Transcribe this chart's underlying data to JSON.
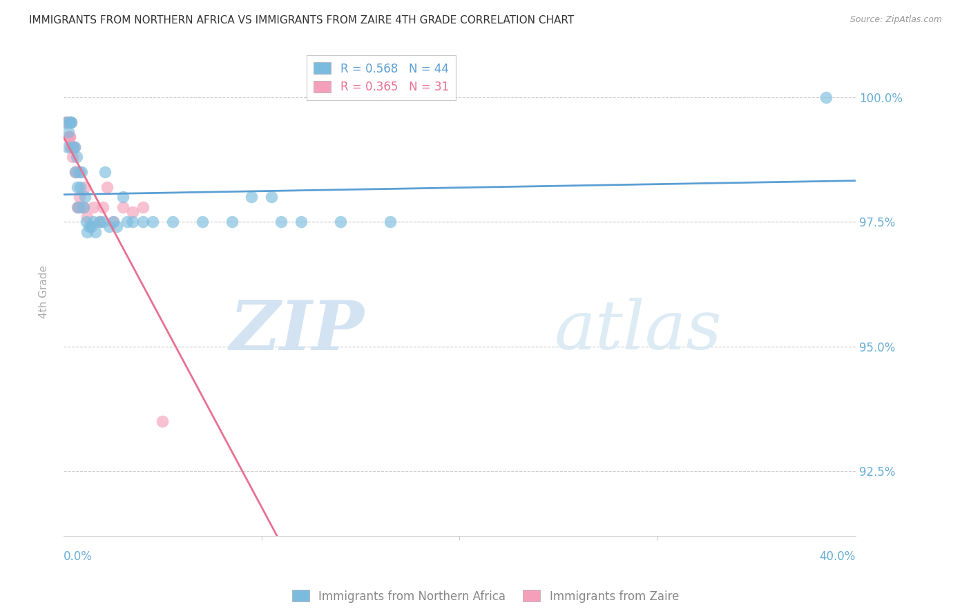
{
  "title": "IMMIGRANTS FROM NORTHERN AFRICA VS IMMIGRANTS FROM ZAIRE 4TH GRADE CORRELATION CHART",
  "source": "Source: ZipAtlas.com",
  "ylabel": "4th Grade",
  "xlim": [
    0.0,
    40.0
  ],
  "ylim": [
    91.2,
    101.0
  ],
  "yticks": [
    92.5,
    95.0,
    97.5,
    100.0
  ],
  "ytick_labels": [
    "92.5%",
    "95.0%",
    "97.5%",
    "100.0%"
  ],
  "blue_color": "#7bbcde",
  "pink_color": "#f4a0bb",
  "blue_line_color": "#5b9fd4",
  "pink_line_color": "#e87090",
  "legend_blue_R": "0.568",
  "legend_blue_N": "44",
  "legend_pink_R": "0.365",
  "legend_pink_N": "31",
  "blue_scatter_x": [
    0.15,
    0.2,
    0.25,
    0.3,
    0.35,
    0.4,
    0.5,
    0.55,
    0.6,
    0.65,
    0.7,
    0.75,
    0.8,
    0.85,
    0.9,
    1.0,
    1.1,
    1.15,
    1.2,
    1.3,
    1.4,
    1.5,
    1.6,
    1.8,
    2.0,
    2.1,
    2.3,
    2.5,
    2.7,
    3.0,
    3.2,
    3.5,
    4.0,
    4.5,
    5.5,
    7.0,
    8.5,
    9.5,
    10.5,
    11.0,
    12.0,
    14.0,
    16.5,
    38.5
  ],
  "blue_scatter_y": [
    99.5,
    99.0,
    99.3,
    99.5,
    99.5,
    99.5,
    99.0,
    99.0,
    98.5,
    98.8,
    98.2,
    97.8,
    98.5,
    98.2,
    98.5,
    97.8,
    98.0,
    97.5,
    97.3,
    97.4,
    97.4,
    97.5,
    97.3,
    97.5,
    97.5,
    98.5,
    97.4,
    97.5,
    97.4,
    98.0,
    97.5,
    97.5,
    97.5,
    97.5,
    97.5,
    97.5,
    97.5,
    98.0,
    98.0,
    97.5,
    97.5,
    97.5,
    97.5,
    100.0
  ],
  "pink_scatter_x": [
    0.1,
    0.15,
    0.2,
    0.25,
    0.28,
    0.3,
    0.33,
    0.35,
    0.38,
    0.4,
    0.45,
    0.5,
    0.55,
    0.6,
    0.65,
    0.7,
    0.75,
    0.8,
    0.9,
    1.0,
    1.1,
    1.2,
    1.5,
    1.8,
    2.0,
    2.2,
    2.5,
    3.0,
    3.5,
    4.0,
    5.0
  ],
  "pink_scatter_y": [
    99.5,
    99.5,
    99.5,
    99.2,
    99.5,
    99.2,
    99.2,
    99.0,
    99.0,
    99.5,
    98.8,
    99.0,
    99.0,
    98.5,
    98.5,
    97.8,
    97.8,
    98.0,
    97.8,
    97.8,
    98.2,
    97.6,
    97.8,
    97.5,
    97.8,
    98.2,
    97.5,
    97.8,
    97.7,
    97.8,
    93.5
  ],
  "watermark_zip": "ZIP",
  "watermark_atlas": "atlas",
  "background_color": "#ffffff",
  "grid_color": "#c8c8c8",
  "title_fontsize": 11,
  "tick_label_color": "#6aaed6"
}
